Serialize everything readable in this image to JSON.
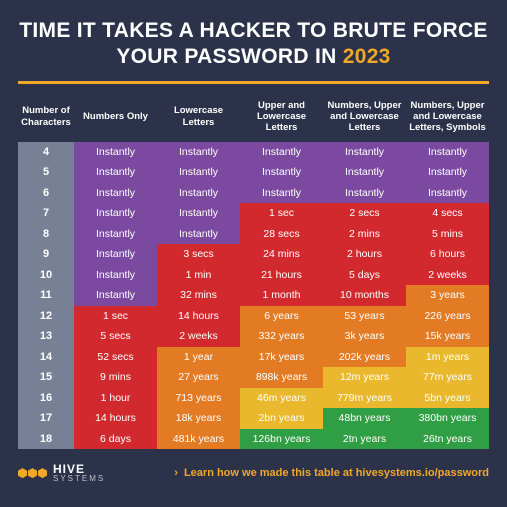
{
  "title": {
    "line": "TIME IT TAKES A HACKER TO BRUTE FORCE YOUR PASSWORD IN",
    "year": "2023"
  },
  "columns": [
    "Number of Characters",
    "Numbers Only",
    "Lowercase Letters",
    "Upper and Lowercase Letters",
    "Numbers, Upper and Lowercase Letters",
    "Numbers, Upper and Lowercase Letters, Symbols"
  ],
  "colors": {
    "purple": "#7b4aa0",
    "red": "#d1292e",
    "orange": "#e27b24",
    "yellow": "#e9b82c",
    "green": "#2f9e44",
    "header": "#788095",
    "bg": "#2b3249",
    "accent": "#f0a828",
    "text": "#ffffff"
  },
  "rows": [
    {
      "n": "4",
      "cells": [
        [
          "Instantly",
          "purple"
        ],
        [
          "Instantly",
          "purple"
        ],
        [
          "Instantly",
          "purple"
        ],
        [
          "Instantly",
          "purple"
        ],
        [
          "Instantly",
          "purple"
        ]
      ]
    },
    {
      "n": "5",
      "cells": [
        [
          "Instantly",
          "purple"
        ],
        [
          "Instantly",
          "purple"
        ],
        [
          "Instantly",
          "purple"
        ],
        [
          "Instantly",
          "purple"
        ],
        [
          "Instantly",
          "purple"
        ]
      ]
    },
    {
      "n": "6",
      "cells": [
        [
          "Instantly",
          "purple"
        ],
        [
          "Instantly",
          "purple"
        ],
        [
          "Instantly",
          "purple"
        ],
        [
          "Instantly",
          "purple"
        ],
        [
          "Instantly",
          "purple"
        ]
      ]
    },
    {
      "n": "7",
      "cells": [
        [
          "Instantly",
          "purple"
        ],
        [
          "Instantly",
          "purple"
        ],
        [
          "1 sec",
          "red"
        ],
        [
          "2 secs",
          "red"
        ],
        [
          "4 secs",
          "red"
        ]
      ]
    },
    {
      "n": "8",
      "cells": [
        [
          "Instantly",
          "purple"
        ],
        [
          "Instantly",
          "purple"
        ],
        [
          "28 secs",
          "red"
        ],
        [
          "2 mins",
          "red"
        ],
        [
          "5 mins",
          "red"
        ]
      ]
    },
    {
      "n": "9",
      "cells": [
        [
          "Instantly",
          "purple"
        ],
        [
          "3 secs",
          "red"
        ],
        [
          "24 mins",
          "red"
        ],
        [
          "2 hours",
          "red"
        ],
        [
          "6 hours",
          "red"
        ]
      ]
    },
    {
      "n": "10",
      "cells": [
        [
          "Instantly",
          "purple"
        ],
        [
          "1 min",
          "red"
        ],
        [
          "21 hours",
          "red"
        ],
        [
          "5 days",
          "red"
        ],
        [
          "2 weeks",
          "red"
        ]
      ]
    },
    {
      "n": "11",
      "cells": [
        [
          "Instantly",
          "purple"
        ],
        [
          "32 mins",
          "red"
        ],
        [
          "1 month",
          "red"
        ],
        [
          "10 months",
          "red"
        ],
        [
          "3 years",
          "orange"
        ]
      ]
    },
    {
      "n": "12",
      "cells": [
        [
          "1 sec",
          "red"
        ],
        [
          "14 hours",
          "red"
        ],
        [
          "6 years",
          "orange"
        ],
        [
          "53 years",
          "orange"
        ],
        [
          "226 years",
          "orange"
        ]
      ]
    },
    {
      "n": "13",
      "cells": [
        [
          "5 secs",
          "red"
        ],
        [
          "2 weeks",
          "red"
        ],
        [
          "332 years",
          "orange"
        ],
        [
          "3k years",
          "orange"
        ],
        [
          "15k years",
          "orange"
        ]
      ]
    },
    {
      "n": "14",
      "cells": [
        [
          "52 secs",
          "red"
        ],
        [
          "1 year",
          "orange"
        ],
        [
          "17k years",
          "orange"
        ],
        [
          "202k years",
          "orange"
        ],
        [
          "1m years",
          "yellow"
        ]
      ]
    },
    {
      "n": "15",
      "cells": [
        [
          "9 mins",
          "red"
        ],
        [
          "27 years",
          "orange"
        ],
        [
          "898k years",
          "orange"
        ],
        [
          "12m years",
          "yellow"
        ],
        [
          "77m years",
          "yellow"
        ]
      ]
    },
    {
      "n": "16",
      "cells": [
        [
          "1 hour",
          "red"
        ],
        [
          "713 years",
          "orange"
        ],
        [
          "46m years",
          "yellow"
        ],
        [
          "779m years",
          "yellow"
        ],
        [
          "5bn years",
          "yellow"
        ]
      ]
    },
    {
      "n": "17",
      "cells": [
        [
          "14 hours",
          "red"
        ],
        [
          "18k years",
          "orange"
        ],
        [
          "2bn years",
          "yellow"
        ],
        [
          "48bn years",
          "green"
        ],
        [
          "380bn years",
          "green"
        ]
      ]
    },
    {
      "n": "18",
      "cells": [
        [
          "6 days",
          "red"
        ],
        [
          "481k years",
          "orange"
        ],
        [
          "126bn years",
          "green"
        ],
        [
          "2tn years",
          "green"
        ],
        [
          "26tn years",
          "green"
        ]
      ]
    }
  ],
  "footer": {
    "brand_l1": "HIVE",
    "brand_l2": "SYSTEMS",
    "cta": "Learn how we made this table at hivesystems.io/password"
  },
  "style": {
    "title_fontsize": 21,
    "cell_fontsize": 10.5,
    "header_fontsize": 9.5,
    "row_height": 20.5
  }
}
